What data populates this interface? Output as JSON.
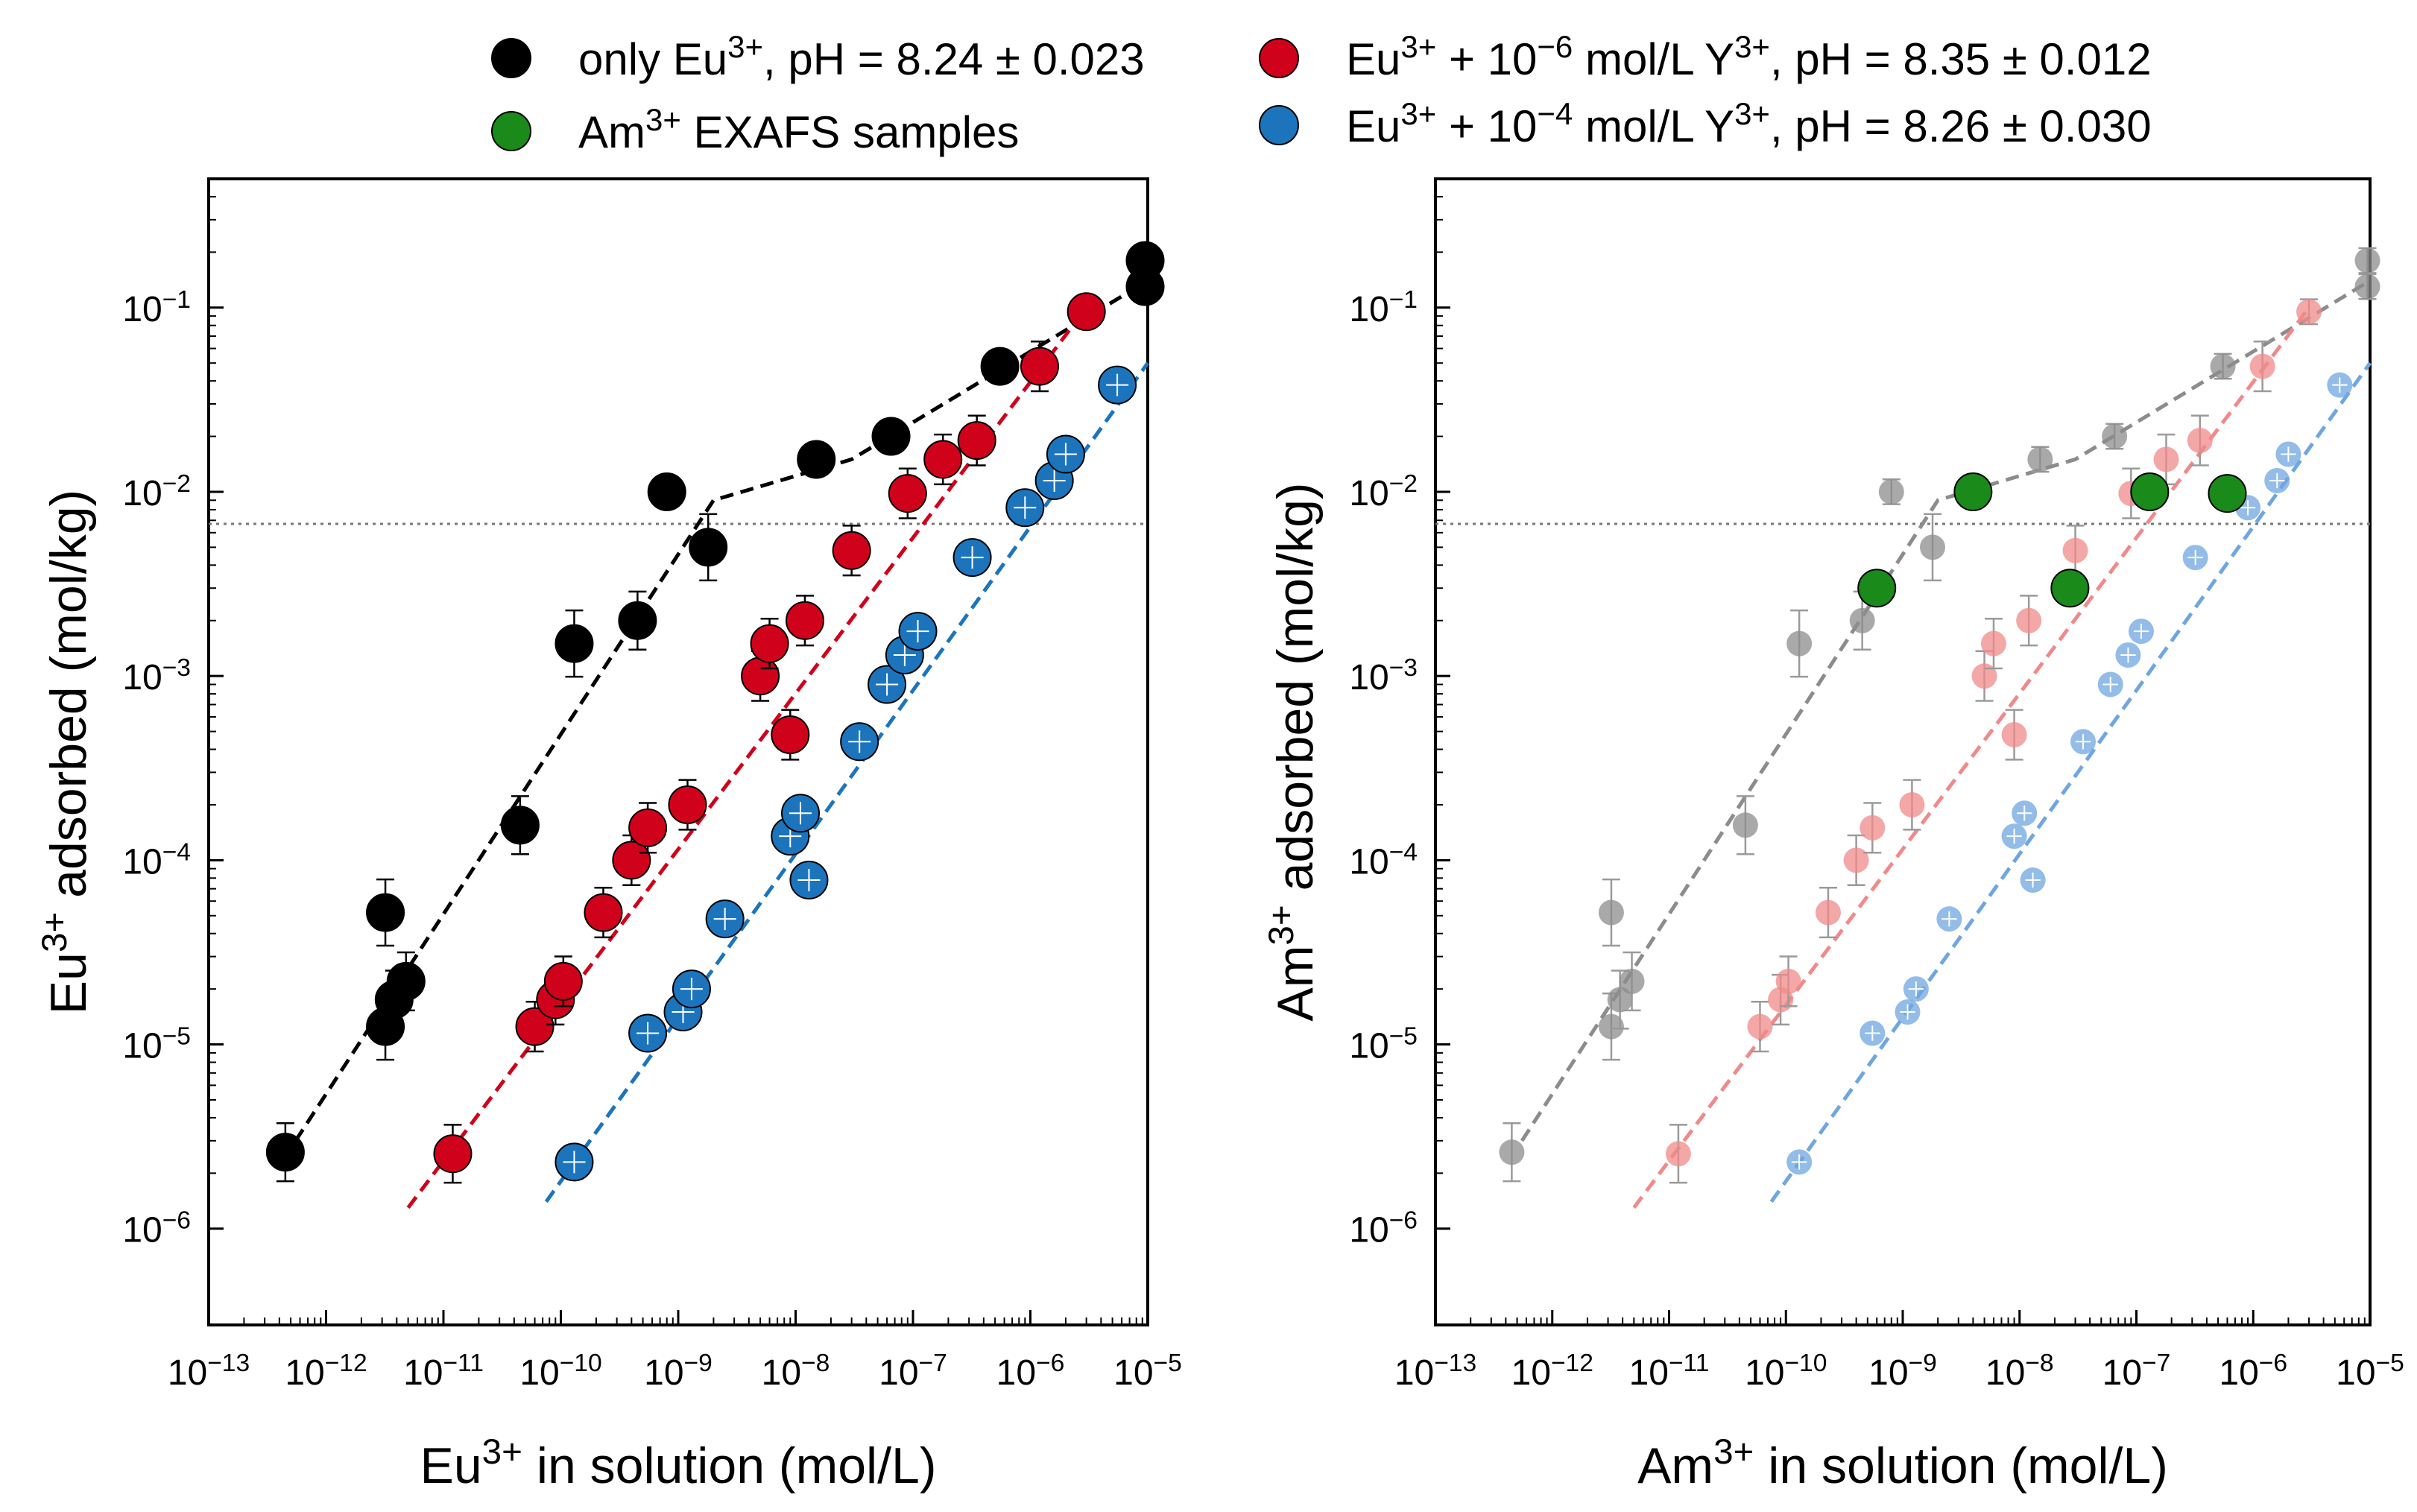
{
  "legend": {
    "items": [
      {
        "key": "eu_only",
        "color": "#000000",
        "parts": [
          [
            "only Eu",
            ""
          ],
          [
            "3+",
            "sup"
          ],
          [
            ", pH = 8.24 ± 0.023",
            ""
          ]
        ]
      },
      {
        "key": "eu_y6",
        "color": "#d0021b",
        "parts": [
          [
            "Eu",
            ""
          ],
          [
            "3+",
            "sup"
          ],
          [
            " + 10",
            ""
          ],
          [
            "−6",
            "sup"
          ],
          [
            " mol/L Y",
            ""
          ],
          [
            "3+",
            "sup"
          ],
          [
            ", pH = 8.35 ± 0.012",
            ""
          ]
        ]
      },
      {
        "key": "am_exafs",
        "color": "#1a8a1a",
        "parts": [
          [
            "Am",
            ""
          ],
          [
            "3+",
            "sup"
          ],
          [
            " EXAFS samples",
            ""
          ]
        ]
      },
      {
        "key": "eu_y4",
        "color": "#1c75bc",
        "parts": [
          [
            "Eu",
            ""
          ],
          [
            "3+",
            "sup"
          ],
          [
            " + 10",
            ""
          ],
          [
            "−4",
            "sup"
          ],
          [
            " mol/L Y",
            ""
          ],
          [
            "3+",
            "sup"
          ],
          [
            ", pH = 8.26 ± 0.030",
            ""
          ]
        ]
      }
    ]
  },
  "colors": {
    "black": "#000000",
    "red": "#d0021b",
    "blue": "#1c75bc",
    "green": "#1a8a1a",
    "gray": "#8c8c8c",
    "pink": "#f08a8a",
    "lightblue": "#6fa6e0"
  },
  "chart_data": [
    {
      "type": "scatter",
      "panel": "left",
      "xlabel_parts": [
        [
          "Eu",
          ""
        ],
        [
          "3+",
          "sup"
        ],
        [
          " in solution (mol/L)",
          ""
        ]
      ],
      "ylabel_parts": [
        [
          "Eu",
          ""
        ],
        [
          "3+",
          "sup"
        ],
        [
          " adsorbed (mol/kg)",
          ""
        ]
      ],
      "xscale": "log",
      "yscale": "log",
      "xlim": [
        1e-13,
        1e-05
      ],
      "ylim": [
        3e-07,
        0.5
      ],
      "x_ticks": [
        -13,
        -12,
        -11,
        -10,
        -9,
        -8,
        -7,
        -6,
        -5
      ],
      "y_ticks": [
        -6,
        -5,
        -4,
        -3,
        -2,
        -1
      ],
      "reference_line_y": 0.0067,
      "series": [
        {
          "name": "only Eu3+, pH = 8.24 ± 0.023",
          "style": "black",
          "points": [
            [
              4.5e-13,
              2.6e-06
            ],
            [
              3.2e-12,
              5.2e-05
            ],
            [
              3.2e-12,
              1.25e-05
            ],
            [
              3.8e-12,
              1.75e-05
            ],
            [
              4.8e-12,
              2.2e-05
            ],
            [
              4.5e-11,
              0.000155
            ],
            [
              1.3e-10,
              0.0015
            ],
            [
              4.5e-10,
              0.002
            ],
            [
              8e-10,
              0.01
            ],
            [
              1.8e-09,
              0.005
            ],
            [
              1.5e-08,
              0.015
            ],
            [
              6.5e-08,
              0.02
            ],
            [
              5.5e-07,
              0.048
            ],
            [
              9.5e-06,
              0.18
            ],
            [
              9.5e-06,
              0.13
            ]
          ],
          "errors": [
            0.35,
            0.4,
            0.4,
            0.35,
            0.35,
            0.35,
            0.4,
            0.35,
            0.15,
            0.4,
            0.15,
            0.15,
            0.15,
            0.15,
            0.15
          ]
        },
        {
          "name": "Eu3+ + 10-6 mol/L Y3+, pH = 8.35 ± 0.012",
          "style": "red",
          "points": [
            [
              1.2e-11,
              2.55e-06
            ],
            [
              2.3e-10,
              5.2e-05
            ],
            [
              6e-11,
              1.25e-05
            ],
            [
              9e-11,
              1.75e-05
            ],
            [
              1.05e-10,
              2.2e-05
            ],
            [
              4e-10,
              0.0001
            ],
            [
              5.5e-10,
              0.00015
            ],
            [
              1.2e-09,
              0.0002
            ],
            [
              5e-09,
              0.001
            ],
            [
              6e-09,
              0.0015
            ],
            [
              9e-09,
              0.00048
            ],
            [
              1.2e-08,
              0.002
            ],
            [
              3e-08,
              0.0048
            ],
            [
              9e-08,
              0.0098
            ],
            [
              1.8e-07,
              0.015
            ],
            [
              3.5e-07,
              0.019
            ],
            [
              1.2e-06,
              0.048
            ],
            [
              3e-06,
              0.095
            ]
          ],
          "errors": [
            0.35,
            0.3,
            0.3,
            0.3,
            0.3,
            0.3,
            0.3,
            0.3,
            0.3,
            0.3,
            0.3,
            0.3,
            0.3,
            0.3,
            0.3,
            0.3,
            0.3,
            0.15
          ]
        },
        {
          "name": "Eu3+ + 10-4 mol/L Y3+, pH = 8.26 ± 0.030",
          "style": "blue",
          "points": [
            [
              1.3e-10,
              2.3e-06
            ],
            [
              5.5e-10,
              1.15e-05
            ],
            [
              1.1e-09,
              1.5e-05
            ],
            [
              1.3e-09,
              2e-05
            ],
            [
              2.5e-09,
              4.8e-05
            ],
            [
              9e-09,
              0.000135
            ],
            [
              1.1e-08,
              0.00018
            ],
            [
              1.3e-08,
              7.8e-05
            ],
            [
              3.5e-08,
              0.00044
            ],
            [
              6e-08,
              0.0009
            ],
            [
              8.5e-08,
              0.0013
            ],
            [
              1.1e-07,
              0.00175
            ],
            [
              3.2e-07,
              0.0044
            ],
            [
              9e-07,
              0.0082
            ],
            [
              1.6e-06,
              0.0115
            ],
            [
              2e-06,
              0.016
            ],
            [
              5.5e-06,
              0.038
            ]
          ],
          "errors": [
            0,
            0,
            0,
            0,
            0,
            0,
            0,
            0,
            0,
            0,
            0,
            0,
            0,
            0,
            0,
            0,
            0
          ]
        }
      ],
      "fit_lines": [
        {
          "style": "black",
          "x": [
            5.5e-13,
            2e-09,
            3e-08,
            1e-05
          ],
          "y": [
            3e-06,
            0.009,
            0.015,
            0.14
          ]
        },
        {
          "style": "red",
          "x": [
            5e-12,
            3e-06
          ],
          "y": [
            1.3e-06,
            0.1
          ]
        },
        {
          "style": "blue",
          "x": [
            7.5e-11,
            1e-05
          ],
          "y": [
            1.4e-06,
            0.05
          ]
        }
      ]
    },
    {
      "type": "scatter",
      "panel": "right",
      "xlabel_parts": [
        [
          "Am",
          ""
        ],
        [
          "3+",
          "sup"
        ],
        [
          " in solution (mol/L)",
          ""
        ]
      ],
      "ylabel_parts": [
        [
          "Am",
          ""
        ],
        [
          "3+",
          "sup"
        ],
        [
          " adsorbed (mol/kg)",
          ""
        ]
      ],
      "xscale": "log",
      "yscale": "log",
      "xlim": [
        1e-13,
        1e-05
      ],
      "ylim": [
        3e-07,
        0.5
      ],
      "x_ticks": [
        -13,
        -12,
        -11,
        -10,
        -9,
        -8,
        -7,
        -6,
        -5
      ],
      "y_ticks": [
        -6,
        -5,
        -4,
        -3,
        -2,
        -1
      ],
      "reference_line_y": 0.0067,
      "series": [
        {
          "name": "Am3+ EXAFS samples",
          "style": "green",
          "points": [
            [
              6e-10,
              0.003
            ],
            [
              4e-09,
              0.01
            ],
            [
              2.7e-08,
              0.003
            ],
            [
              1.3e-07,
              0.01
            ],
            [
              6e-07,
              0.0098
            ]
          ],
          "errors": [
            0.15,
            0.15,
            0.15,
            0.15,
            0.15
          ]
        }
      ],
      "background_series_from_left_panel": true,
      "fit_lines_faded": true
    }
  ]
}
